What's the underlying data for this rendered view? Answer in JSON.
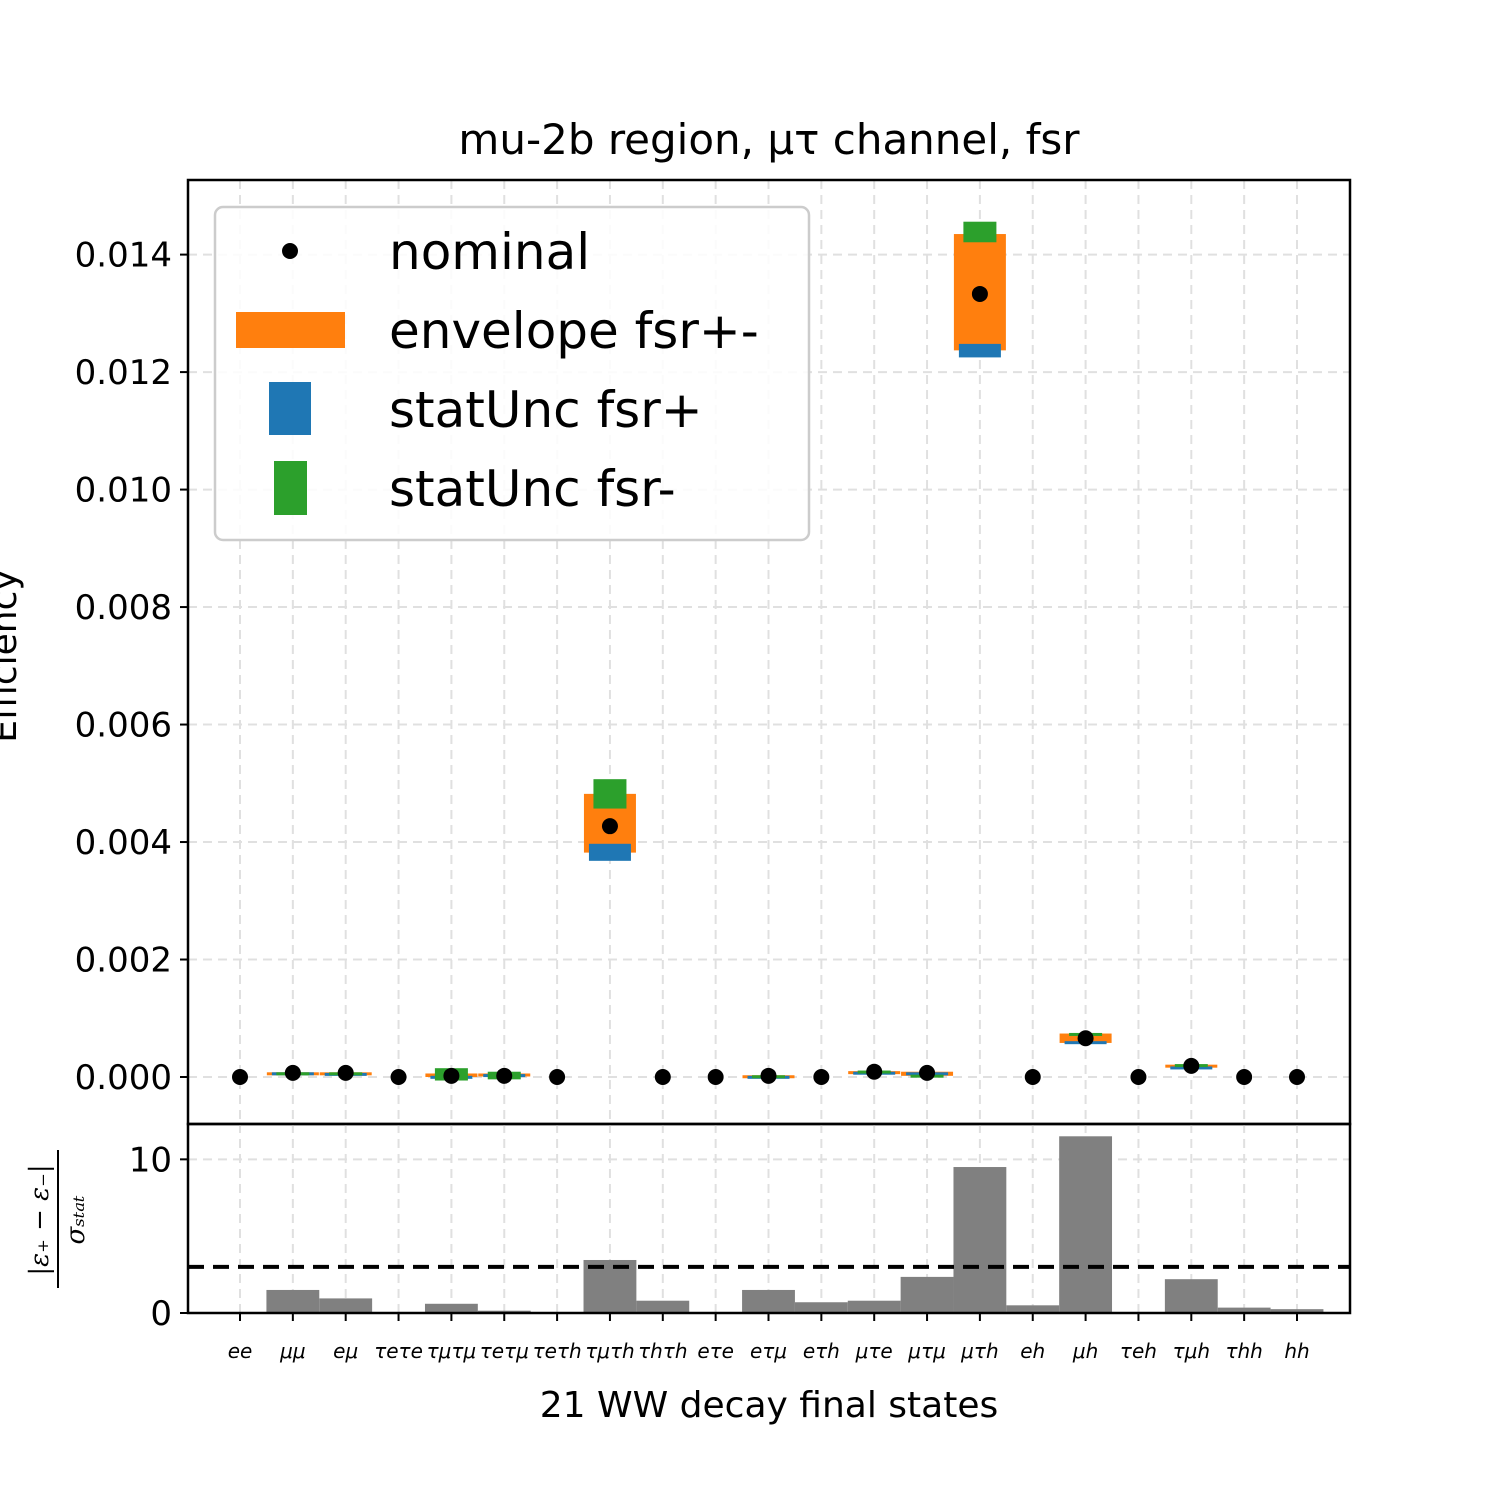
{
  "chart_data": {
    "type": "scatter",
    "title": "mu-2b region, μτ channel, fsr",
    "xlabel": "21 WW decay final states",
    "ylabel": "Efficiency",
    "ratio_ylabel": "|ε+ − ε−| / σstat",
    "ylim": [
      -0.0008,
      0.01527
    ],
    "ratio_ylim": [
      0,
      12.3
    ],
    "ratio_threshold": 3,
    "yticks": [
      "0.000",
      "0.002",
      "0.004",
      "0.006",
      "0.008",
      "0.010",
      "0.012",
      "0.014"
    ],
    "ratio_yticks": [
      "0",
      "10"
    ],
    "categories": [
      "ee",
      "μμ",
      "eμ",
      "τeτe",
      "τμτμ",
      "τeτμ",
      "τeτh",
      "τμτh",
      "τhτh",
      "eτe",
      "eτμ",
      "eτh",
      "μτe",
      "μτμ",
      "μτh",
      "eh",
      "μh",
      "τeh",
      "τμh",
      "τhh",
      "hh"
    ],
    "nominal": [
      0.0,
      7e-05,
      7e-05,
      0.0,
      2e-05,
      2e-05,
      0.0,
      0.00427,
      0.0,
      0.0,
      2e-05,
      0.0,
      9e-05,
      7e-05,
      0.01333,
      0.0,
      0.00066,
      0.0,
      0.00019,
      0.0,
      0.0
    ],
    "envelope_low": [
      0.0,
      6e-05,
      6e-05,
      0.0,
      0.0,
      1e-05,
      0.0,
      0.00382,
      0.0,
      0.0,
      1e-05,
      0.0,
      8e-05,
      2e-05,
      0.01237,
      0.0,
      0.00058,
      0.0,
      0.00017,
      0.0,
      0.0
    ],
    "envelope_high": [
      0.0,
      8e-05,
      8e-05,
      0.0,
      6e-05,
      6e-05,
      0.0,
      0.00482,
      0.0,
      0.0,
      3e-05,
      0.0,
      0.0001,
      9e-05,
      0.01435,
      0.0,
      0.00074,
      0.0,
      0.00021,
      0.0,
      0.0
    ],
    "statUnc_fsr_plus": [
      [
        0.0,
        0.0
      ],
      [
        6e-05,
        8e-05
      ],
      [
        6e-05,
        7e-05
      ],
      [
        0.0,
        0.0
      ],
      [
        0.0,
        2e-05
      ],
      [
        1e-05,
        5e-05
      ],
      [
        0.0,
        0.0
      ],
      [
        0.00368,
        0.00397
      ],
      [
        0.0,
        0.0
      ],
      [
        0.0,
        0.0
      ],
      [
        1e-05,
        2e-05
      ],
      [
        0.0,
        0.0
      ],
      [
        7e-05,
        9e-05
      ],
      [
        5e-05,
        8e-05
      ],
      [
        0.01225,
        0.01248
      ],
      [
        0.0,
        0.0
      ],
      [
        0.00058,
        0.00061
      ],
      [
        0.0,
        0.0
      ],
      [
        0.00017,
        0.00018
      ],
      [
        0.0,
        0.0
      ],
      [
        0.0,
        0.0
      ]
    ],
    "statUnc_fsr_minus": [
      [
        0.0,
        0.0
      ],
      [
        7e-05,
        8e-05
      ],
      [
        7e-05,
        8e-05
      ],
      [
        0.0,
        0.0
      ],
      [
        -6e-05,
        0.00015
      ],
      [
        -4e-05,
        9e-05
      ],
      [
        0.0,
        0.0
      ],
      [
        0.00457,
        0.00507
      ],
      [
        0.0,
        0.0
      ],
      [
        0.0,
        0.0
      ],
      [
        2e-05,
        3e-05
      ],
      [
        0.0,
        0.0
      ],
      [
        9e-05,
        0.00011
      ],
      [
        2e-05,
        4e-05
      ],
      [
        0.01421,
        0.01456
      ],
      [
        0.0,
        0.0
      ],
      [
        0.00073,
        0.00075
      ],
      [
        0.0,
        0.0
      ],
      [
        0.0002,
        0.00022
      ],
      [
        0.0,
        0.0
      ],
      [
        0.0,
        0.0
      ]
    ],
    "ratio": [
      0,
      1.5,
      0.95,
      0,
      0.6,
      0.15,
      0,
      3.45,
      0.8,
      0,
      1.5,
      0.7,
      0.8,
      2.35,
      9.5,
      0.5,
      11.5,
      0,
      2.2,
      0.35,
      0.25
    ],
    "legend": [
      {
        "label": "nominal",
        "color": "#000000"
      },
      {
        "label": "envelope fsr+-",
        "color": "#ff7f0e"
      },
      {
        "label": "statUnc fsr+",
        "color": "#1f77b4"
      },
      {
        "label": "statUnc fsr-",
        "color": "#2ca02c"
      }
    ],
    "legend_position": "top-left",
    "grid": true,
    "colors": {
      "nominal": "#000000",
      "envelope": "#ff7f0e",
      "fsr_plus": "#1f77b4",
      "fsr_minus": "#2ca02c",
      "ratio_bar": "#808080"
    }
  }
}
